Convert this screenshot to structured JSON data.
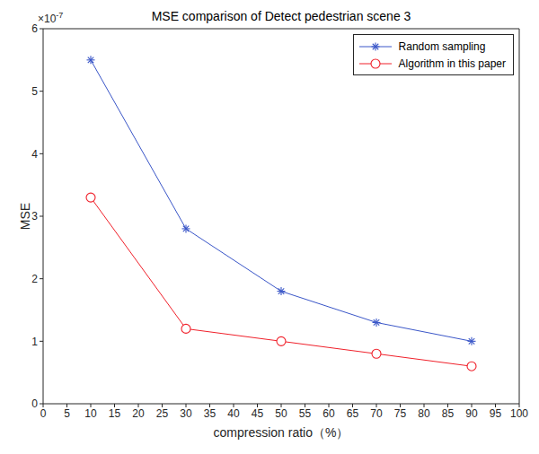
{
  "chart_data": {
    "type": "line",
    "title": "MSE comparison of Detect pedestrian scene 3",
    "x_label": "compression ratio（%）",
    "y_label": "MSE",
    "y_multiplier": {
      "base": "×10",
      "exponent": "-7"
    },
    "x": [
      10,
      30,
      50,
      70,
      90
    ],
    "series": [
      {
        "name": "Random sampling",
        "color": "#3a56c8",
        "marker": "star",
        "values": [
          5.5,
          2.8,
          1.8,
          1.3,
          1.0
        ]
      },
      {
        "name": "Algorithm in this paper",
        "color": "#f0202a",
        "marker": "circle",
        "values": [
          3.3,
          1.2,
          1.0,
          0.8,
          0.6
        ]
      }
    ],
    "xlim": [
      0,
      100
    ],
    "xticks": [
      0,
      5,
      10,
      15,
      20,
      25,
      30,
      35,
      40,
      45,
      50,
      55,
      60,
      65,
      70,
      75,
      80,
      85,
      90,
      95,
      100
    ],
    "ylim": [
      0,
      6
    ],
    "yticks": [
      0,
      1,
      2,
      3,
      4,
      5,
      6
    ],
    "legend": "upper right",
    "grid": false
  }
}
